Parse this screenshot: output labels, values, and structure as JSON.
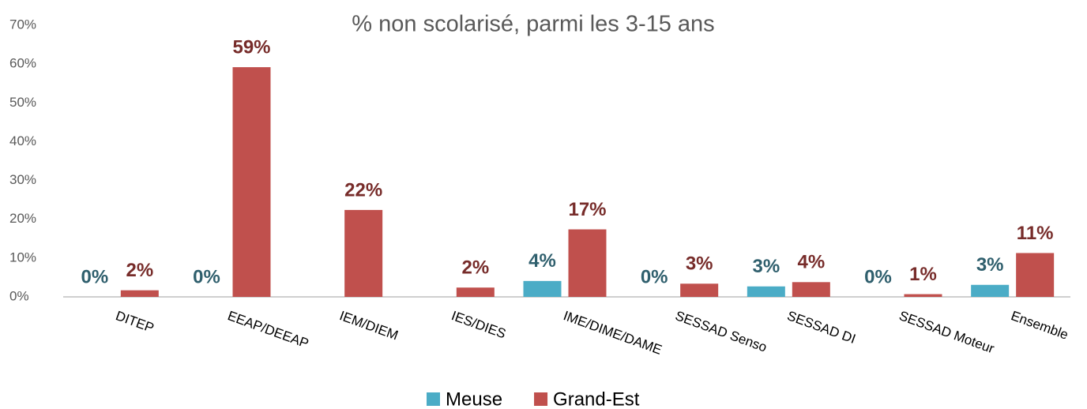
{
  "chart_data": {
    "type": "bar",
    "title": "% non scolarisé, parmi les 3-15 ans",
    "categories": [
      "DITEP",
      "EEAP/DEEAP",
      "IEM/DIEM",
      "IES/DIES",
      "IME/DIME/DAME",
      "SESSAD Senso",
      "SESSAD DI",
      "SESSAD Moteur",
      "Ensemble"
    ],
    "series": [
      {
        "name": "Meuse",
        "color": "#4bacc6",
        "label_color": "#2f5f6d",
        "values": [
          0,
          0,
          null,
          null,
          4.1,
          0,
          2.7,
          0,
          3.1
        ],
        "value_labels": [
          "0%",
          "0%",
          null,
          null,
          "4%",
          "0%",
          "3%",
          "0%",
          "3%"
        ]
      },
      {
        "name": "Grand-Est",
        "color": "#c0504d",
        "label_color": "#772c2a",
        "values": [
          1.7,
          59.2,
          22.4,
          2.4,
          17.4,
          3.4,
          3.8,
          0.7,
          11.3
        ],
        "value_labels": [
          "2%",
          "59%",
          "22%",
          "2%",
          "17%",
          "3%",
          "4%",
          "1%",
          "11%"
        ]
      }
    ],
    "ylim": [
      0,
      70
    ],
    "yticks": [
      {
        "value": 0,
        "label": "0%"
      },
      {
        "value": 10,
        "label": "10%"
      },
      {
        "value": 20,
        "label": "20%"
      },
      {
        "value": 30,
        "label": "30%"
      },
      {
        "value": 40,
        "label": "40%"
      },
      {
        "value": 50,
        "label": "50%"
      },
      {
        "value": 60,
        "label": "60%"
      },
      {
        "value": 70,
        "label": "70%"
      }
    ],
    "grid": false,
    "legend": "bottom"
  }
}
